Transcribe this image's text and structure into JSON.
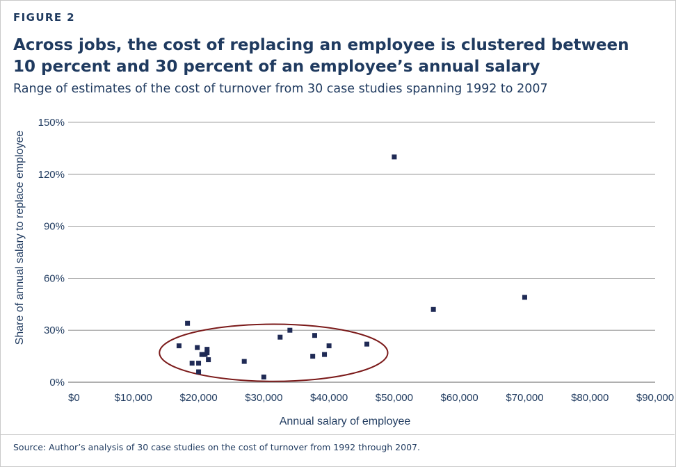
{
  "figure_label": "FIGURE 2",
  "title": "Across jobs, the cost of replacing an employee is clustered between 10 percent and 30 percent of an employee’s annual salary",
  "subtitle": "Range of estimates of the cost of turnover from 30 case studies spanning 1992 to 2007",
  "source": "Source: Author’s analysis of 30 case studies on the cost of turnover from 1992 through 2007.",
  "colors": {
    "text": "#1f3a5f",
    "marker": "#1f2a55",
    "gridline": "#7f7f7f",
    "ellipse": "#7b1a1a"
  },
  "chart_data": {
    "type": "scatter",
    "xlabel": "Annual salary of employee",
    "ylabel": "Share of annual salary to replace employee",
    "xlim": [
      0,
      90000
    ],
    "ylim": [
      0,
      150
    ],
    "x_ticks": [
      0,
      10000,
      20000,
      30000,
      40000,
      50000,
      60000,
      70000,
      80000,
      90000
    ],
    "x_tick_labels": [
      "$0",
      "$10,000",
      "$20,000",
      "$30,000",
      "$40,000",
      "$50,000",
      "$60,000",
      "$70,000",
      "$80,000",
      "$90,000"
    ],
    "y_ticks": [
      0,
      30,
      60,
      90,
      120,
      150
    ],
    "y_tick_labels": [
      "0%",
      "30%",
      "60%",
      "90%",
      "120%",
      "150%"
    ],
    "grid": "horizontal",
    "marker": "square",
    "points": [
      {
        "x": 17000,
        "y": 21
      },
      {
        "x": 18300,
        "y": 34
      },
      {
        "x": 19000,
        "y": 11
      },
      {
        "x": 19800,
        "y": 20
      },
      {
        "x": 20000,
        "y": 11
      },
      {
        "x": 20000,
        "y": 6
      },
      {
        "x": 20500,
        "y": 16
      },
      {
        "x": 21000,
        "y": 16
      },
      {
        "x": 21300,
        "y": 19
      },
      {
        "x": 21300,
        "y": 17
      },
      {
        "x": 21500,
        "y": 13
      },
      {
        "x": 27000,
        "y": 12
      },
      {
        "x": 30000,
        "y": 3
      },
      {
        "x": 32500,
        "y": 26
      },
      {
        "x": 34000,
        "y": 30
      },
      {
        "x": 37500,
        "y": 15
      },
      {
        "x": 37800,
        "y": 27
      },
      {
        "x": 39300,
        "y": 16
      },
      {
        "x": 40000,
        "y": 21
      },
      {
        "x": 45800,
        "y": 22
      },
      {
        "x": 50000,
        "y": 130
      },
      {
        "x": 56000,
        "y": 42
      },
      {
        "x": 70000,
        "y": 49
      }
    ],
    "annotation": {
      "type": "ellipse",
      "cx": 31500,
      "cy": 17,
      "rx": 17500,
      "ry": 16.5
    }
  }
}
